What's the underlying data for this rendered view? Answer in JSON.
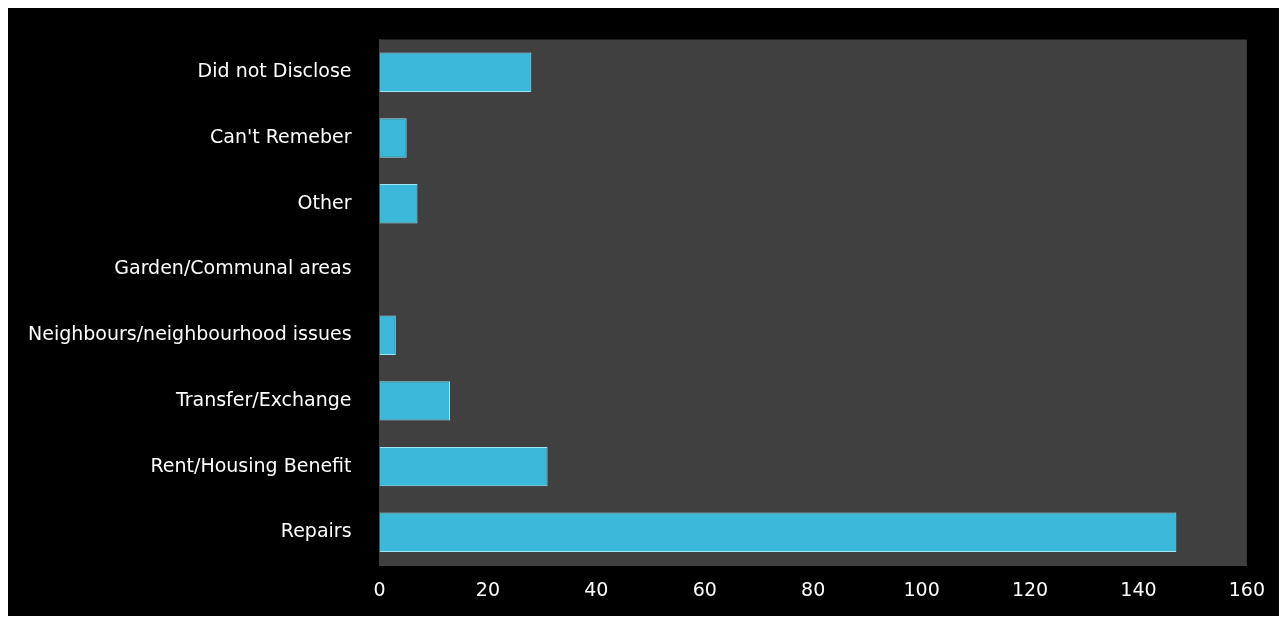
{
  "chart_data": {
    "type": "bar",
    "orientation": "horizontal",
    "categories": [
      "Did not Disclose",
      "Can't Remeber",
      "Other",
      "Garden/Communal areas",
      "Neighbours/neighbourhood issues",
      "Transfer/Exchange",
      "Rent/Housing Benefit",
      "Repairs"
    ],
    "values": [
      28,
      5,
      7,
      0,
      3,
      13,
      31,
      147
    ],
    "color": "#3cb9da",
    "xlim": [
      0,
      160
    ],
    "xticks": [
      0,
      20,
      40,
      60,
      80,
      100,
      120,
      140,
      160
    ],
    "grid": false,
    "legend": false
  }
}
